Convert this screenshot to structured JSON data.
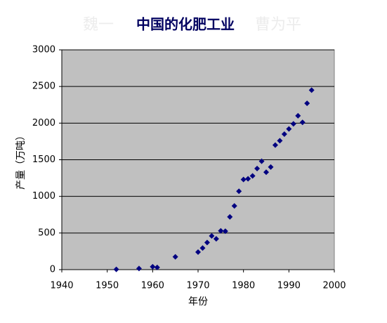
{
  "chart_data": {
    "type": "scatter",
    "title": "中国的化肥工业",
    "annotations": [
      "魏一",
      "曹为平"
    ],
    "x_label": "年份",
    "y_label": "产量（万吨）",
    "series": [
      {
        "color": "#000080",
        "x": [
          1952,
          1957,
          1960,
          1961,
          1965,
          1970,
          1971,
          1972,
          1973,
          1974,
          1975,
          1976,
          1977,
          1978,
          1979,
          1980,
          1981,
          1982,
          1983,
          1984,
          1985,
          1986,
          1987,
          1988,
          1989,
          1990,
          1991,
          1992,
          1993,
          1994,
          1995
        ],
        "values": [
          4,
          15,
          40,
          30,
          175,
          240,
          295,
          370,
          460,
          420,
          530,
          525,
          720,
          870,
          1070,
          1230,
          1240,
          1280,
          1380,
          1480,
          1330,
          1400,
          1700,
          1760,
          1850,
          1920,
          1990,
          2100,
          2010,
          2270,
          2450
        ]
      }
    ],
    "xlim": [
      1940,
      2000
    ],
    "xticks": [
      1940,
      1950,
      1960,
      1970,
      1980,
      1990,
      2000
    ],
    "ylim": [
      0,
      3000
    ],
    "yticks": [
      0,
      500,
      1000,
      1500,
      2000,
      2500,
      3000
    ],
    "grid": true,
    "plot_background": "#c0c0c0"
  }
}
